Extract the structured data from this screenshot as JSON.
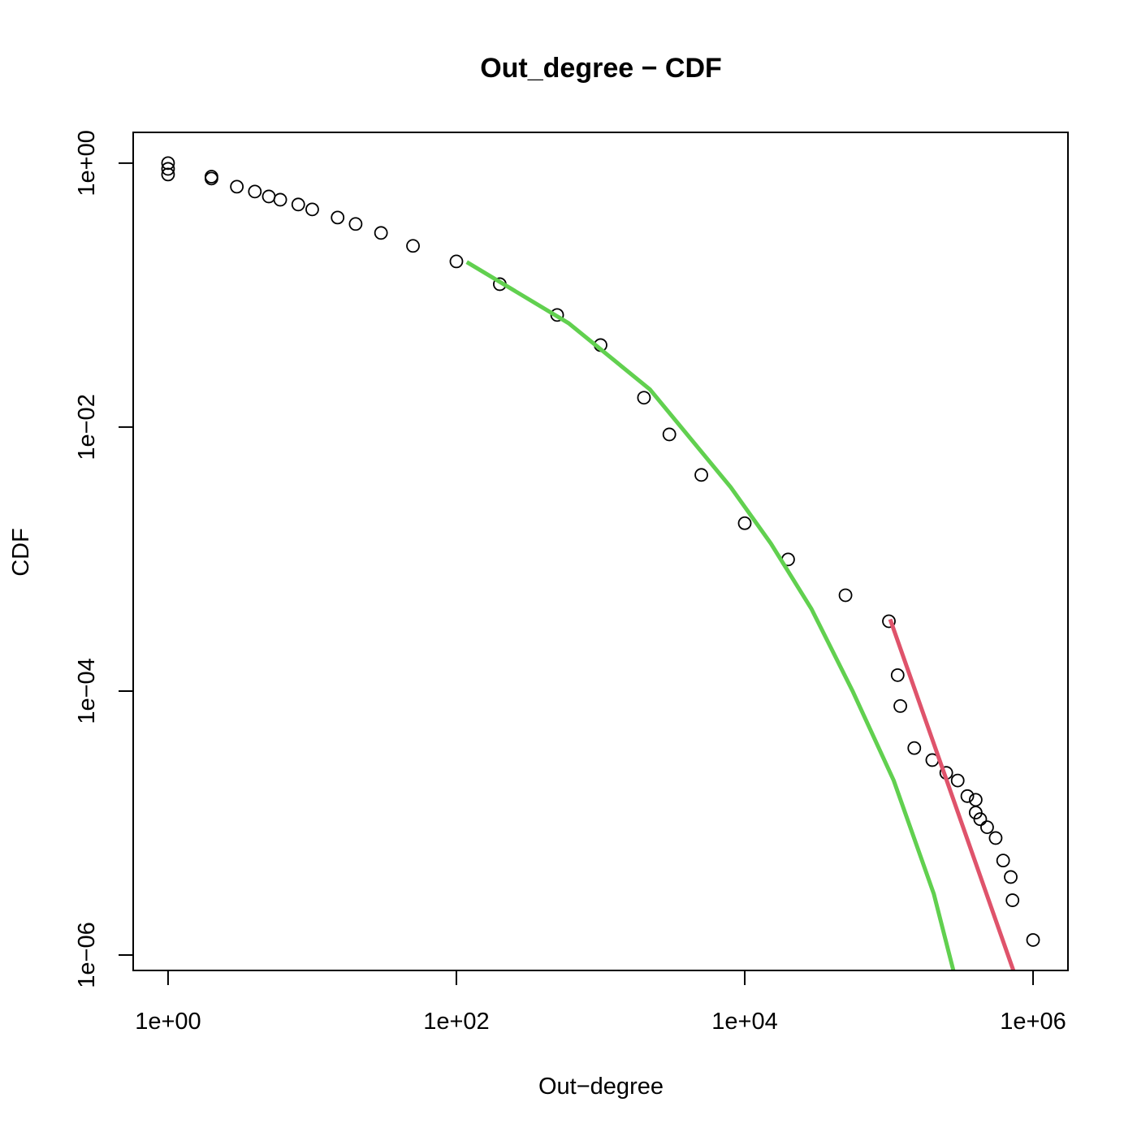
{
  "chart_data": {
    "type": "scatter",
    "title": "Out_degree − CDF",
    "x_label": "Out−degree",
    "y_label": "CDF",
    "xlog": true,
    "ylog": true,
    "xlim": [
      0.573,
      1746000
    ],
    "ylim": [
      1.71,
      7.64e-07
    ],
    "xticks": [
      {
        "value": 1,
        "label": "1e+00"
      },
      {
        "value": 100,
        "label": "1e+02"
      },
      {
        "value": 10000,
        "label": "1e+04"
      },
      {
        "value": 1000000,
        "label": "1e+06"
      }
    ],
    "yticks": [
      {
        "value": 1,
        "label": "1e+00"
      },
      {
        "value": 0.01,
        "label": "1e−02"
      },
      {
        "value": 0.0001,
        "label": "1e−04"
      },
      {
        "value": 1e-06,
        "label": "1e−06"
      }
    ],
    "series": [
      {
        "mode": "points",
        "color": "#000000",
        "x": [
          1,
          1,
          1,
          2,
          2,
          3,
          4,
          5,
          6,
          8,
          10,
          15,
          20,
          30,
          50,
          100,
          200,
          500,
          1000,
          2000,
          3000,
          5000,
          10000,
          20000,
          50000,
          100000,
          115000,
          120000,
          150000,
          200000,
          250000,
          300000,
          350000,
          400000,
          400000,
          430000,
          480000,
          550000,
          620000,
          700000,
          720000,
          1000000
        ],
        "values": [
          1,
          0.905,
          0.82,
          0.79,
          0.764,
          0.663,
          0.609,
          0.559,
          0.528,
          0.486,
          0.446,
          0.387,
          0.346,
          0.296,
          0.236,
          0.18,
          0.121,
          0.0707,
          0.0418,
          0.0167,
          0.0088,
          0.00434,
          0.00187,
          0.000994,
          0.000532,
          0.000338,
          0.000132,
          7.7e-05,
          3.7e-05,
          3e-05,
          2.4e-05,
          2.1e-05,
          1.6e-05,
          1.5e-05,
          1.2e-05,
          1.07e-05,
          9.3e-06,
          7.7e-06,
          5.2e-06,
          3.9e-06,
          2.6e-06,
          1.3e-06
        ]
      },
      {
        "mode": "line",
        "color": "#61D04F",
        "x": [
          118,
          600,
          2200,
          8000,
          15200,
          29000,
          56000,
          108000,
          205000,
          280000
        ],
        "values": [
          0.178,
          0.0613,
          0.0193,
          0.0035,
          0.00131,
          0.00042,
          0.0001,
          2.1e-05,
          2.9e-06,
          7.64e-07
        ]
      },
      {
        "mode": "line",
        "color": "#DF536B",
        "x": [
          102000,
          730000
        ],
        "values": [
          0.00035,
          7.64e-07
        ]
      }
    ]
  }
}
